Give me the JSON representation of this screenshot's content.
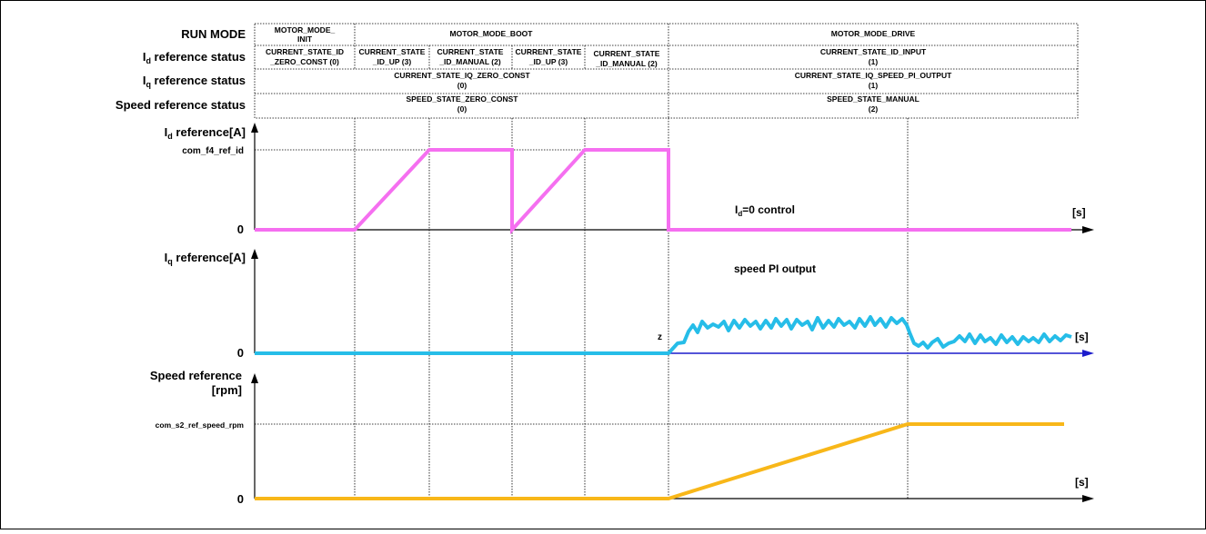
{
  "colors": {
    "id_trace": "#f56ff0",
    "iq_trace": "#26bde8",
    "speed_trace": "#f8b719",
    "iq_axis": "#1c1ccc",
    "axis": "#000000"
  },
  "row_labels": {
    "run_mode": "RUN MODE",
    "id_status": {
      "main": "I",
      "sub": "d",
      "rest": " reference status"
    },
    "iq_status": {
      "main": "I",
      "sub": "q",
      "rest": " reference status"
    },
    "speed_status": "Speed reference status"
  },
  "run_mode": {
    "init": [
      "MOTOR_MODE_",
      "INIT"
    ],
    "boot": "MOTOR_MODE_BOOT",
    "drive": "MOTOR_MODE_DRIVE"
  },
  "id_states": {
    "zero_const": [
      "CURRENT_STATE_ID",
      "_ZERO_CONST (0)"
    ],
    "up1": [
      "CURRENT_STATE",
      "_ID_UP (3)"
    ],
    "manual1": [
      "CURRENT_STATE",
      "_ID_MANUAL (2)"
    ],
    "up2": [
      "CURRENT_STATE",
      "_ID_UP (3)"
    ],
    "manual2": [
      "CURRENT_STATE",
      "_ID_MANUAL (2)"
    ],
    "input": [
      "CURRENT_STATE_ID_INPUT",
      "(1)"
    ]
  },
  "iq_states": {
    "boot": [
      "CURRENT_STATE_IQ_ZERO_CONST",
      "(0)"
    ],
    "drive": [
      "CURRENT_STATE_IQ_SPEED_PI_OUTPUT",
      "(1)"
    ]
  },
  "speed_states": {
    "boot": [
      "SPEED_STATE_ZERO_CONST",
      "(0)"
    ],
    "drive": [
      "SPEED_STATE_MANUAL",
      "(2)"
    ]
  },
  "plots": {
    "id": {
      "ylabel": {
        "main": "I",
        "sub": "d",
        "rest": " reference[A]"
      },
      "level_label": "com_f4_ref_id",
      "zero": "0",
      "unit": "[s]",
      "annotation": {
        "main": "I",
        "sub": "d",
        "rest": "=0 control"
      }
    },
    "iq": {
      "ylabel": {
        "main": "I",
        "sub": "q",
        "rest": " reference[A]"
      },
      "zero": "0",
      "unit": "[s]",
      "annotation": "speed PI output",
      "marker": "z"
    },
    "speed": {
      "ylabel": [
        "Speed reference",
        "[rpm]"
      ],
      "level_label": "com_s2_ref_speed_rpm",
      "zero": "0",
      "unit": "[s]"
    }
  }
}
